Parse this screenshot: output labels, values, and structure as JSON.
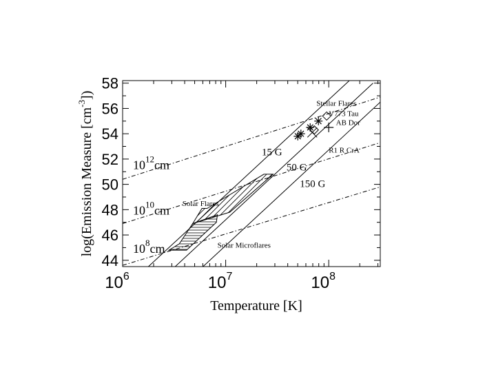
{
  "chart_data": {
    "type": "scatter",
    "xlabel": "Temperature  [K]",
    "ylabel_main": "log(Emission Measure  [cm",
    "ylabel_sup": "-3",
    "ylabel_end": "])",
    "x_log_scale": true,
    "xlim_log10": [
      6.0,
      8.5
    ],
    "ylim": [
      43.5,
      58.2
    ],
    "x_ticks": [
      {
        "base": "10",
        "exp": "6",
        "log10": 6
      },
      {
        "base": "10",
        "exp": "7",
        "log10": 7
      },
      {
        "base": "10",
        "exp": "8",
        "log10": 8
      }
    ],
    "y_ticks": [
      "44",
      "46",
      "48",
      "50",
      "52",
      "54",
      "56",
      "58"
    ],
    "grid": false,
    "field_lines": [
      {
        "name": "15 G",
        "points": [
          [
            6.25,
            43.5
          ],
          [
            8.2,
            58.2
          ]
        ]
      },
      {
        "name": "50 G",
        "points": [
          [
            6.51,
            43.5
          ],
          [
            8.43,
            58.0
          ]
        ]
      },
      {
        "name": "150 G",
        "points": [
          [
            6.78,
            43.5
          ],
          [
            8.5,
            56.5
          ]
        ]
      }
    ],
    "length_lines": [
      {
        "base": "10",
        "exp": "12",
        "unit": "cm",
        "points": [
          [
            6.0,
            50.4
          ],
          [
            8.5,
            56.9
          ]
        ]
      },
      {
        "base": "10",
        "exp": "10",
        "unit": "cm",
        "points": [
          [
            6.0,
            46.9
          ],
          [
            8.5,
            53.3
          ]
        ]
      },
      {
        "base": "10",
        "exp": "8",
        "unit": "cm",
        "points": [
          [
            6.0,
            43.6
          ],
          [
            8.5,
            49.8
          ]
        ]
      }
    ],
    "regions": [
      {
        "name": "Solar Flares",
        "points": [
          [
            6.82,
            48.1
          ],
          [
            7.37,
            50.8
          ],
          [
            7.46,
            50.8
          ],
          [
            7.04,
            47.8
          ],
          [
            6.68,
            46.9
          ],
          [
            6.77,
            48.1
          ]
        ]
      },
      {
        "name": "Solar Microflares",
        "points": [
          [
            6.55,
            45.3
          ],
          [
            6.68,
            46.9
          ],
          [
            6.92,
            47.6
          ],
          [
            6.91,
            47.0
          ],
          [
            6.62,
            44.8
          ],
          [
            6.45,
            44.8
          ],
          [
            6.55,
            45.3
          ]
        ]
      }
    ],
    "series": [
      {
        "name": "Stellar Flares",
        "marker": "asterisk",
        "points": [
          [
            7.7,
            53.8
          ],
          [
            7.73,
            54.0
          ],
          [
            7.82,
            54.5
          ],
          [
            7.9,
            55.0
          ]
        ]
      },
      {
        "name": "V773 Tau",
        "marker": "diamond",
        "points": [
          [
            7.86,
            54.3
          ],
          [
            7.98,
            55.4
          ]
        ]
      },
      {
        "name": "AB Dor",
        "marker": "plus",
        "points": [
          [
            8.0,
            54.5
          ]
        ]
      },
      {
        "name": "R1 R CrA",
        "marker": "cross",
        "points": [
          [
            7.84,
            54.1
          ]
        ]
      }
    ],
    "annotations": [
      {
        "text": "Stellar Flares",
        "x": 7.88,
        "y": 56.2
      },
      {
        "text": "V773 Tau",
        "x": 8.0,
        "y": 55.4
      },
      {
        "text": "AB Dor",
        "x": 8.07,
        "y": 54.7
      },
      {
        "text": "R1 R CrA",
        "x": 8.0,
        "y": 52.5
      },
      {
        "text": "15 G",
        "x": 7.35,
        "y": 52.3
      },
      {
        "text": "50 G",
        "x": 7.59,
        "y": 51.1
      },
      {
        "text": "150 G",
        "x": 7.72,
        "y": 49.8
      },
      {
        "text": "Solar Flares",
        "x": 6.58,
        "y": 48.3
      },
      {
        "text": "Solar Microflares",
        "x": 6.92,
        "y": 45.0
      }
    ]
  }
}
